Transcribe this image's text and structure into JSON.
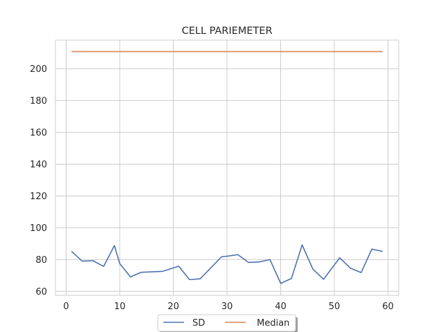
{
  "chart_data": {
    "type": "line",
    "title": "CELL PARIEMETER",
    "xlabel": "",
    "ylabel": "",
    "xlim": [
      -2,
      62
    ],
    "ylim": [
      57.5,
      218
    ],
    "xticks": [
      0,
      10,
      20,
      30,
      40,
      50,
      60
    ],
    "yticks": [
      60,
      80,
      100,
      120,
      140,
      160,
      180,
      200
    ],
    "grid": true,
    "legend_position": "bottom-center",
    "series": [
      {
        "name": "SD",
        "color": "#4c72b0",
        "x": [
          1,
          3,
          5,
          7,
          9,
          10,
          12,
          14,
          18,
          21,
          23,
          25,
          29,
          30,
          32,
          34,
          36,
          38,
          40,
          42,
          44,
          46,
          48,
          51,
          53,
          55,
          57,
          59
        ],
        "y": [
          85.2,
          79,
          79.3,
          75.7,
          88.8,
          77.5,
          69.1,
          72,
          72.6,
          75.8,
          67.4,
          67.9,
          81.8,
          82.1,
          83.1,
          78.2,
          78.5,
          80,
          65,
          68.1,
          89.2,
          74,
          67.6,
          81.1,
          74.6,
          71.8,
          86.6,
          85.1
        ]
      },
      {
        "name": "Median",
        "color": "#dd8452",
        "x": [
          1,
          59
        ],
        "y": [
          210.8,
          210.8
        ]
      }
    ]
  }
}
